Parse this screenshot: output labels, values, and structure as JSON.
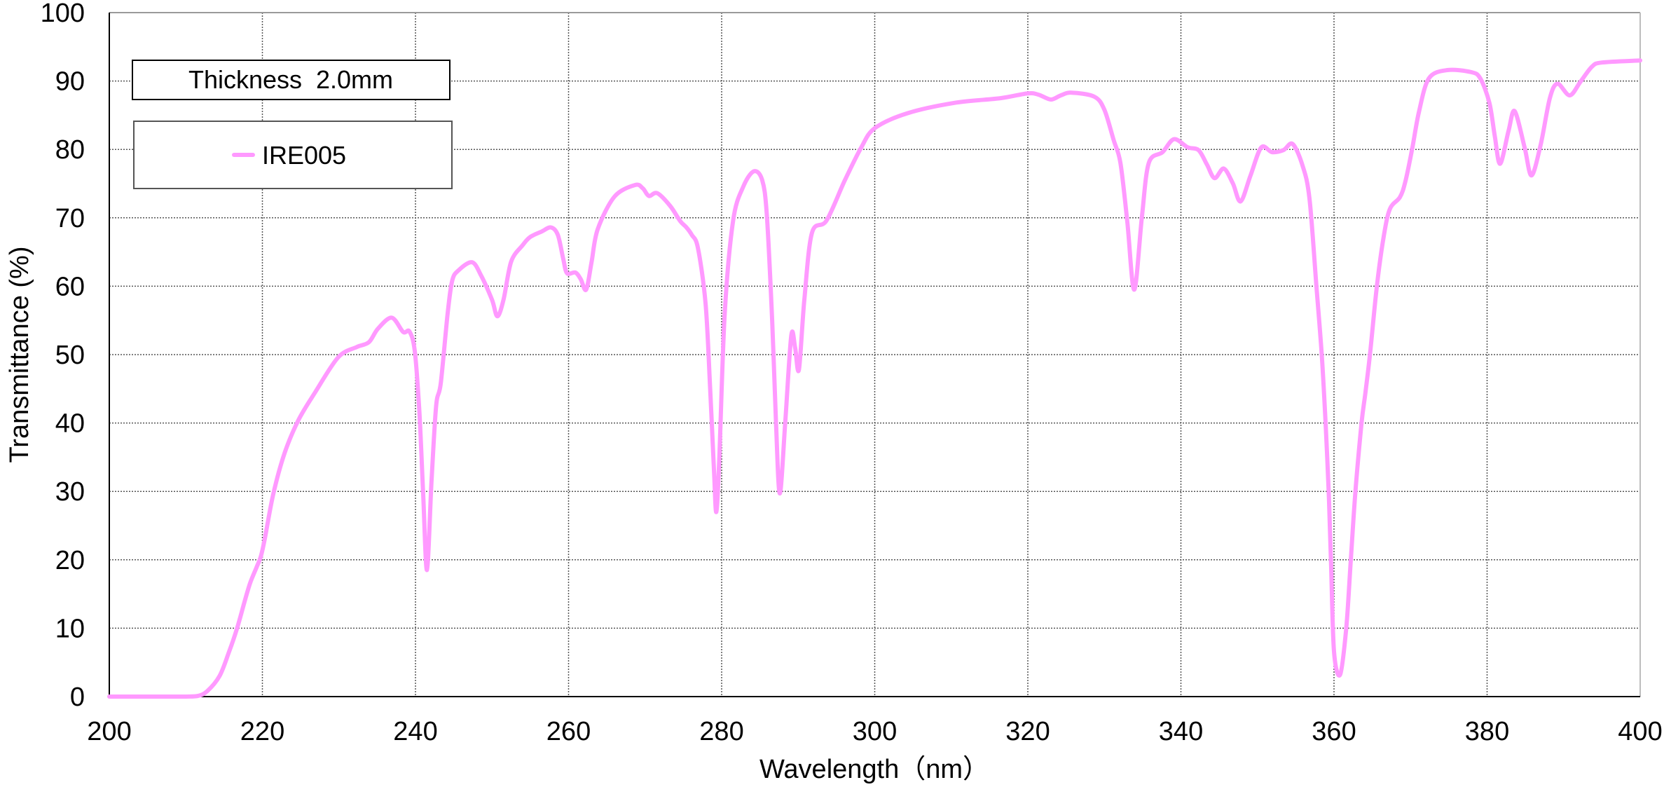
{
  "chart_data": {
    "type": "line",
    "title": "",
    "xlabel": "Wavelength（nm）",
    "ylabel": "Transmittance (%)",
    "xlim": [
      200,
      400
    ],
    "ylim": [
      0,
      100
    ],
    "x_ticks": [
      200,
      220,
      240,
      260,
      280,
      300,
      320,
      340,
      360,
      380,
      400
    ],
    "y_ticks": [
      0,
      10,
      20,
      30,
      40,
      50,
      60,
      70,
      80,
      90,
      100
    ],
    "grid": true,
    "annotation": "Thickness  2.0mm",
    "legend_position": "upper-left",
    "series": [
      {
        "name": "IRE005",
        "color": "#ff99ff",
        "x": [
          200,
          205,
          210,
          211.6,
          212.8,
          214.4,
          215.6,
          216.7,
          217.7,
          218.4,
          219.2,
          219.8,
          220.3,
          221.4,
          222.9,
          224.7,
          226.9,
          229.9,
          232.3,
          233.9,
          235.1,
          236.9,
          238.4,
          239.2,
          239.9,
          240.5,
          241.0,
          241.5,
          242.1,
          242.7,
          243.3,
          244.2,
          244.8,
          245.6,
          247.4,
          248.6,
          250.0,
          250.7,
          251.5,
          252.5,
          254.0,
          255.0,
          256.5,
          257.7,
          258.6,
          259.3,
          259.8,
          260.9,
          261.6,
          262.3,
          263.0,
          263.8,
          266.0,
          268.7,
          269.7,
          270.5,
          271.6,
          273.3,
          274.6,
          275.4,
          276.1,
          276.9,
          277.9,
          278.5,
          279.0,
          279.3,
          279.7,
          280.4,
          281.5,
          282.8,
          284.2,
          285.3,
          285.9,
          286.6,
          287.1,
          287.6,
          288.3,
          289.1,
          289.6,
          290.1,
          290.8,
          291.8,
          293.7,
          296.1,
          298.2,
          300.0,
          304.3,
          310.4,
          316.5,
          320.0,
          321.4,
          323.0,
          324.3,
          325.7,
          328.7,
          330.0,
          331.2,
          332.1,
          333.0,
          333.9,
          334.9,
          335.8,
          337.6,
          339.1,
          340.9,
          342.3,
          343.4,
          344.4,
          345.6,
          346.8,
          347.8,
          349.1,
          350.5,
          351.9,
          353.4,
          354.6,
          355.9,
          356.8,
          357.7,
          358.4,
          358.9,
          359.3,
          359.6,
          360.0,
          360.8,
          361.6,
          362.2,
          362.8,
          363.6,
          364.1,
          364.7,
          365.6,
          366.5,
          367.3,
          368.6,
          369.3,
          370.2,
          371.1,
          372.4,
          374.8,
          377.9,
          379.1,
          380.3,
          381.0,
          381.7,
          382.8,
          383.6,
          384.9,
          385.8,
          387.0,
          388.2,
          389.2,
          390.8,
          392.2,
          393.7,
          395.0,
          400.0
        ],
        "values": [
          0,
          0,
          0,
          0.1,
          0.8,
          3.0,
          6.4,
          10.0,
          14.0,
          16.6,
          18.8,
          20.5,
          23.0,
          29.5,
          35.6,
          40.4,
          44.5,
          49.6,
          51.1,
          51.8,
          53.8,
          55.4,
          53.3,
          53.4,
          50.6,
          41.8,
          29.8,
          18.5,
          31.5,
          42.5,
          45.8,
          56.0,
          60.8,
          62.3,
          63.5,
          61.5,
          58.0,
          55.6,
          58.0,
          63.6,
          66.0,
          67.2,
          68.0,
          68.6,
          67.5,
          64.0,
          61.9,
          62.0,
          61.0,
          59.5,
          63.5,
          68.3,
          73.1,
          74.8,
          74.3,
          73.2,
          73.6,
          71.7,
          69.5,
          68.6,
          67.5,
          65.6,
          57.4,
          45.0,
          33.0,
          27.0,
          35.0,
          56.0,
          69.6,
          74.5,
          76.8,
          75.5,
          70.4,
          55.0,
          40.0,
          29.7,
          40.0,
          52.8,
          51.0,
          47.8,
          58.0,
          67.8,
          69.6,
          75.5,
          80.2,
          83.1,
          85.3,
          86.8,
          87.5,
          88.2,
          88.0,
          87.3,
          87.9,
          88.3,
          87.7,
          85.8,
          81.4,
          78.0,
          69.4,
          59.5,
          70.1,
          78.0,
          79.6,
          81.5,
          80.3,
          79.9,
          77.8,
          75.8,
          77.2,
          75.0,
          72.4,
          76.2,
          80.3,
          79.6,
          79.9,
          80.8,
          77.6,
          72.8,
          60.0,
          50.0,
          40.0,
          30.0,
          20.0,
          6.6,
          3.2,
          10.0,
          20.0,
          30.0,
          40.0,
          44.4,
          50.0,
          60.0,
          67.3,
          71.3,
          73.0,
          75.2,
          80.0,
          85.5,
          90.4,
          91.6,
          91.3,
          90.4,
          86.8,
          82.0,
          77.9,
          82.7,
          85.6,
          80.3,
          76.2,
          80.7,
          87.5,
          89.6,
          87.9,
          89.9,
          92.1,
          92.7,
          93.0
        ]
      }
    ]
  },
  "annotation_box": {
    "text": "Thickness  2.0mm"
  },
  "legend": {
    "items": [
      {
        "label": "IRE005",
        "color": "#ff99ff"
      }
    ]
  },
  "axes": {
    "x_title": "Wavelength（nm）",
    "y_title": "Transmittance (%)",
    "x_tick_labels": [
      "200",
      "220",
      "240",
      "260",
      "280",
      "300",
      "320",
      "340",
      "360",
      "380",
      "400"
    ],
    "y_tick_labels": [
      "0",
      "10",
      "20",
      "30",
      "40",
      "50",
      "60",
      "70",
      "80",
      "90",
      "100"
    ]
  }
}
